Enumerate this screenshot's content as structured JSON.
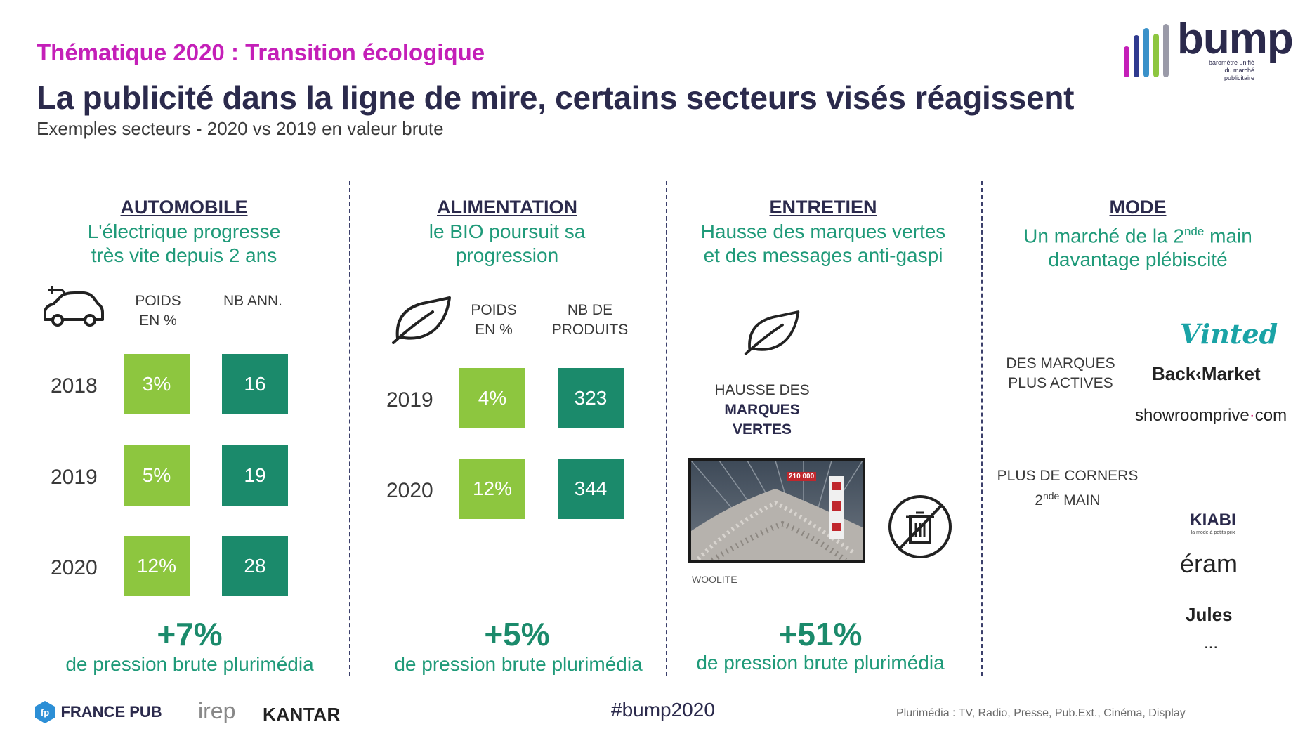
{
  "header": {
    "theme": "Thématique 2020 : Transition écologique",
    "title": "La publicité dans la ligne de mire, certains secteurs visés réagissent",
    "subtitle": "Exemples secteurs - 2020 vs 2019 en valeur brute"
  },
  "logo": {
    "word": "bump",
    "tagline_1": "baromètre unifié",
    "tagline_2": "du marché publicitaire",
    "bar_colors": [
      "#c41fb8",
      "#2f3a8f",
      "#3a91c9",
      "#8dc63f",
      "#9a9aa8"
    ]
  },
  "colors": {
    "light_green": "#8dc63f",
    "dark_green": "#1b8a6b",
    "teal_text": "#1f9a79",
    "magenta": "#c41fb8",
    "navy": "#2b2a4c"
  },
  "sections": {
    "automobile": {
      "heading": "AUTOMOBILE",
      "sub_1": "L'électrique progresse",
      "sub_2": "très vite depuis 2 ans",
      "icon": "electric-car-icon",
      "col1_1": "POIDS",
      "col1_2": "EN %",
      "col2_1": "NB ANN.",
      "rows": [
        {
          "year": "2018",
          "poids": "3%",
          "nb": "16"
        },
        {
          "year": "2019",
          "poids": "5%",
          "nb": "19"
        },
        {
          "year": "2020",
          "poids": "12%",
          "nb": "28"
        }
      ],
      "big": "+7%",
      "big_sub": "de pression brute plurimédia"
    },
    "alimentation": {
      "heading": "ALIMENTATION",
      "sub_1": "le BIO poursuit sa",
      "sub_2": "progression",
      "icon": "leaf-icon",
      "col1_1": "POIDS",
      "col1_2": "EN %",
      "col2_1": "NB DE",
      "col2_2": "PRODUITS",
      "rows": [
        {
          "year": "2019",
          "poids": "4%",
          "nb": "323"
        },
        {
          "year": "2020",
          "poids": "12%",
          "nb": "344"
        }
      ],
      "big": "+5%",
      "big_sub": "de pression brute plurimédia"
    },
    "entretien": {
      "heading": "ENTRETIEN",
      "sub_1": "Hausse des marques vertes",
      "sub_2": "et des messages anti-gaspi",
      "icon": "leaf-icon",
      "label_1": "HAUSSE DES",
      "label_2": "MARQUES",
      "label_3": "VERTES",
      "ad_caption": "WOOLITE",
      "ad_badge": "210 000",
      "big": "+51%",
      "big_sub": "de pression brute plurimédia"
    },
    "mode": {
      "heading": "MODE",
      "sub_1a": "Un marché de la 2",
      "sub_1sup": "nde",
      "sub_1b": " main",
      "sub_2": "davantage plébiscité",
      "label_a1": "DES MARQUES",
      "label_a2": "PLUS ACTIVES",
      "label_b1": "PLUS DE CORNERS",
      "label_b2a": "2",
      "label_b2sup": "nde",
      "label_b2b": " MAIN",
      "brands": {
        "vinted": "Vinted",
        "backmarket": "Back‹Market",
        "showroom": "showroomprive",
        "showroom_suffix": "com",
        "kiabi": "KIABI",
        "kiabi_tag": "la mode à petits prix",
        "eram": "éram",
        "jules": "Jules",
        "more": "..."
      }
    }
  },
  "footer": {
    "francepub": "FRANCE PUB",
    "irep": "irep",
    "kantar": "KANTAR",
    "hashtag": "#bump2020",
    "source": "Plurimédia : TV, Radio, Presse, Pub.Ext., Cinéma, Display"
  }
}
